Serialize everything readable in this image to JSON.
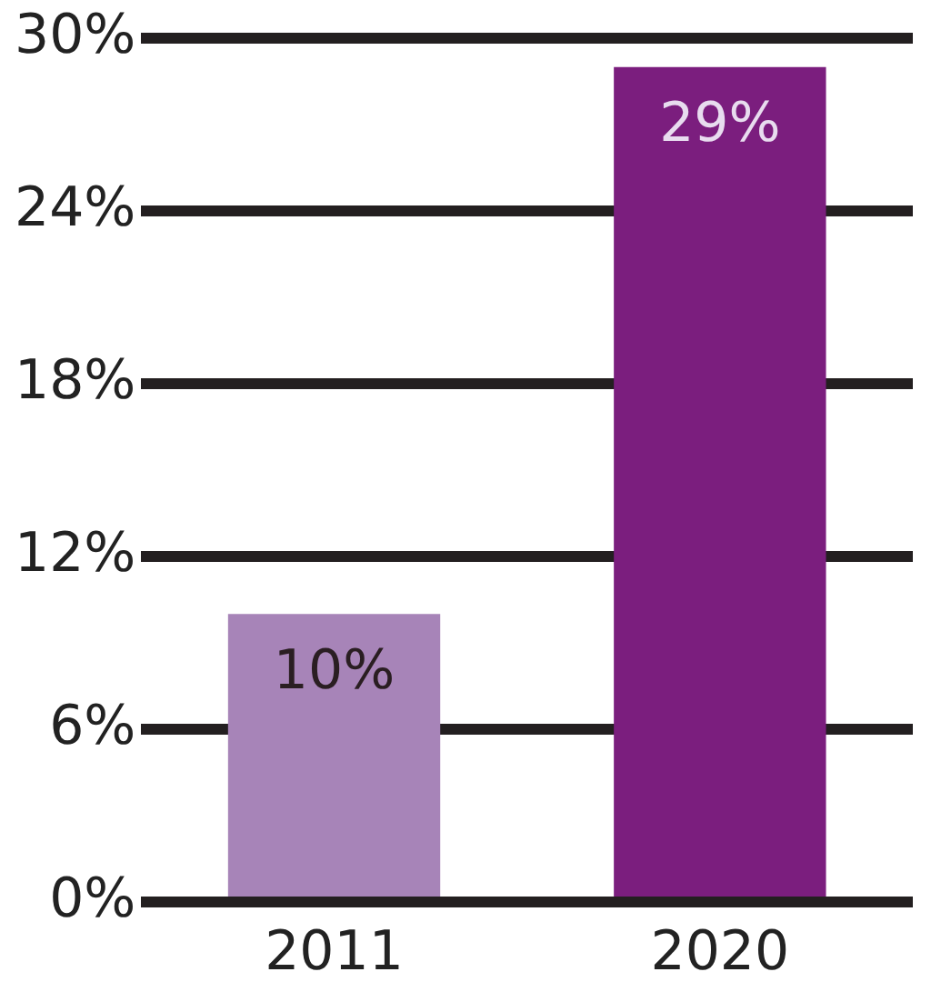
{
  "chart_data": {
    "type": "bar",
    "categories": [
      "2011",
      "2020"
    ],
    "values": [
      10,
      29
    ],
    "colors": [
      "#a784b8",
      "#7b1e7e"
    ],
    "value_labels": [
      "10%",
      "29%"
    ],
    "ylim": [
      0,
      30
    ],
    "yticks": [
      {
        "value": 0,
        "label": "0%"
      },
      {
        "value": 6,
        "label": "6%"
      },
      {
        "value": 12,
        "label": "12%"
      },
      {
        "value": 18,
        "label": "18%"
      },
      {
        "value": 24,
        "label": "24%"
      },
      {
        "value": 30,
        "label": "30%"
      }
    ],
    "grid": "y",
    "legend": false
  }
}
